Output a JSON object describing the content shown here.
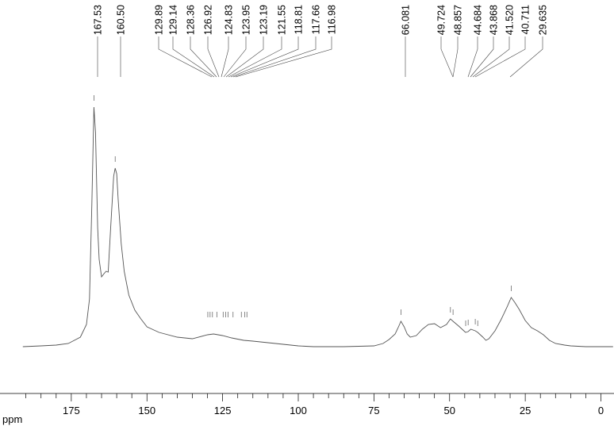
{
  "chart_data": {
    "type": "line",
    "title": "",
    "xlabel": "ppm",
    "ylabel": "",
    "xlim": [
      191,
      -4
    ],
    "x_reversed": true,
    "grid": false,
    "x_ticks": [
      "175",
      "150",
      "125",
      "100",
      "75",
      "50",
      "25",
      "0"
    ],
    "x_tick_values": [
      175,
      150,
      125,
      100,
      75,
      50,
      25,
      0
    ],
    "peak_labels": [
      "167.53",
      "160.50",
      "129.89",
      "129.14",
      "128.36",
      "126.92",
      "124.83",
      "123.95",
      "123.19",
      "121.55",
      "118.81",
      "117.66",
      "116.98",
      "66.081",
      "49.724",
      "48.857",
      "44.684",
      "43.868",
      "41.520",
      "40.711",
      "29.635"
    ],
    "peak_positions": [
      167.53,
      160.5,
      129.89,
      129.14,
      128.36,
      126.92,
      124.83,
      123.95,
      123.19,
      121.55,
      118.81,
      117.66,
      116.98,
      66.081,
      49.724,
      48.857,
      44.684,
      43.868,
      41.52,
      40.711,
      29.635
    ],
    "series": [
      {
        "x": [
          191,
          185,
          180,
          176,
          172,
          170,
          169,
          168.2,
          167.53,
          167,
          166.3,
          165.8,
          165,
          164.2,
          163.5,
          162.8,
          162,
          161,
          160.5,
          160,
          159.5,
          158.5,
          157.5,
          156,
          154,
          152,
          150,
          146,
          140,
          135,
          130,
          128,
          125,
          122,
          118,
          115,
          110,
          105,
          100,
          95,
          90,
          85,
          80,
          75,
          72,
          70,
          68,
          67,
          66.081,
          65,
          64,
          63,
          61,
          59,
          57,
          55,
          53,
          51,
          49.724,
          48.857,
          47,
          45,
          44.684,
          43.868,
          43,
          41.52,
          40.711,
          39,
          38,
          37,
          35,
          33,
          31,
          29.635,
          28.5,
          27,
          25,
          23,
          21,
          19,
          17,
          15,
          12,
          10,
          5,
          0,
          -4
        ],
        "y": [
          0,
          1,
          2,
          4,
          12,
          28,
          60,
          180,
          302,
          270,
          150,
          110,
          88,
          92,
          95,
          94,
          150,
          215,
          225,
          218,
          185,
          130,
          95,
          65,
          46,
          35,
          25,
          18,
          12,
          10,
          15,
          16,
          14,
          11,
          8,
          7,
          5,
          3,
          1,
          0,
          0,
          0,
          0.5,
          1,
          4,
          9,
          16,
          24,
          32,
          25,
          16,
          12,
          14,
          22,
          28,
          29,
          24,
          28,
          35,
          32,
          26,
          19,
          18,
          19,
          22,
          20,
          18,
          12,
          8,
          10,
          20,
          34,
          50,
          62,
          56,
          47,
          33,
          24,
          20,
          15,
          8,
          4,
          2,
          1,
          0,
          0,
          0
        ]
      }
    ]
  }
}
